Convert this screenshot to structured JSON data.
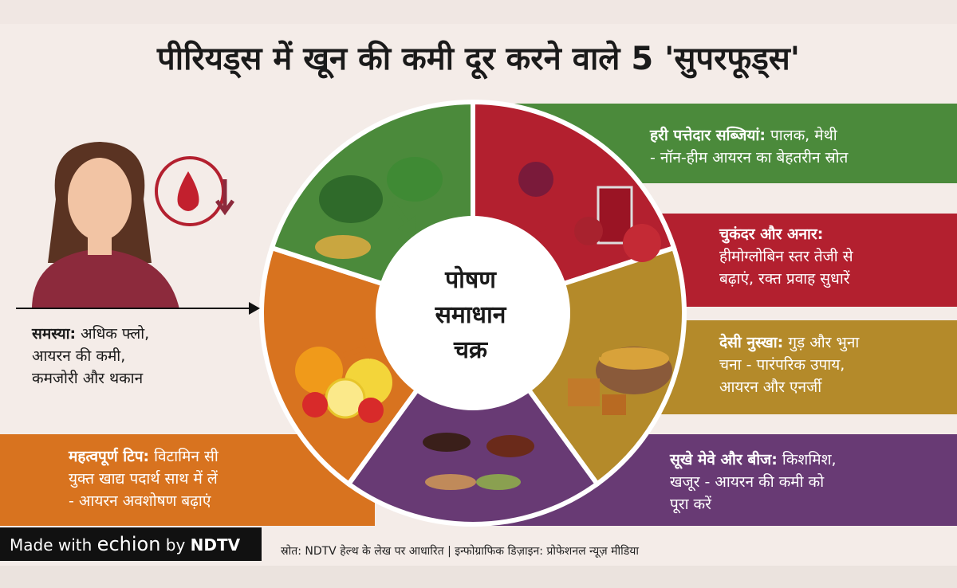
{
  "title": "पीरियड्स में खून की कमी दूर करने वाले 5 'सुपरफूड्स'",
  "center": {
    "line1": "पोषण",
    "line2": "समाधान",
    "line3": "चक्र"
  },
  "problem": {
    "label": "समस्या:",
    "text1": " अधिक फ्लो,",
    "text2": "आयरन की कमी,",
    "text3": "कमजोरी और थकान"
  },
  "bands": [
    {
      "label": "हरी पत्तेदार सब्जियां:",
      "line1": " पालक, मेथी",
      "line2": "- नॉन-हीम आयरन का बेहतरीन स्रोत",
      "color": "#4b8a3b"
    },
    {
      "label": "चुकंदर और अनार:",
      "line1": "",
      "line2": "हीमोग्लोबिन स्तर तेजी से",
      "line3": "बढ़ाएं, रक्त प्रवाह सुधारें",
      "color": "#b3202f"
    },
    {
      "label": "देसी नुस्खा:",
      "line1": " गुड़ और भुना",
      "line2": "चना - पारंपरिक उपाय,",
      "line3": "आयरन और एनर्जी",
      "color": "#b48a2a"
    },
    {
      "label": "सूखे मेवे और बीज:",
      "line1": " किशमिश,",
      "line2": "खजूर - आयरन की कमी को",
      "line3": "पूरा करें",
      "color": "#683a74"
    },
    {
      "label": "महत्वपूर्ण टिप:",
      "line1": " विटामिन सी",
      "line2": "युक्त खाद्य पदार्थ साथ में लें",
      "line3": "- आयरन अवशोषण बढ़ाएं",
      "color": "#d8731f"
    }
  ],
  "footer": {
    "made_with": "Made with ",
    "brand": "echion",
    "by": " by ",
    "ndtv": "NDTV",
    "source": "स्रोत: NDTV हेल्थ के लेख पर आधारित | इन्फोग्राफिक डिज़ाइन: प्रोफेशनल न्यूज़ मीडिया"
  },
  "icons": [
    "woman-illustration",
    "blood-drop-down-icon",
    "leafy-greens",
    "beetroot-pomegranate-juice",
    "jaggery-chana",
    "dry-fruits-seeds",
    "citrus-fruits"
  ]
}
